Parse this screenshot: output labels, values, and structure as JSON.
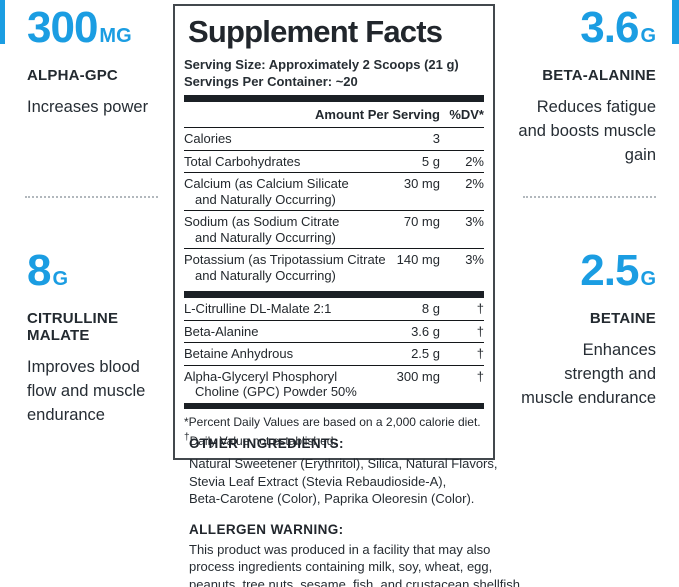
{
  "colors": {
    "accent": "#1b9de2",
    "dark": "#22282e"
  },
  "benefits": {
    "top_left": {
      "value": "300",
      "unit": "MG",
      "name": "ALPHA-GPC",
      "description_lines": [
        "Increases power"
      ]
    },
    "bottom_left": {
      "value": "8",
      "unit": "G",
      "name": "CITRULLINE MALATE",
      "description_lines": [
        "Improves blood",
        "flow and muscle",
        "endurance"
      ]
    },
    "top_right": {
      "value": "3.6",
      "unit": "G",
      "name": "BETA-ALANINE",
      "description_lines": [
        "Reduces fatigue",
        "and boosts muscle",
        "gain"
      ]
    },
    "bottom_right": {
      "value": "2.5",
      "unit": "G",
      "name": "BETAINE",
      "description_lines": [
        "Enhances",
        "strength and",
        "muscle endurance"
      ]
    }
  },
  "panel": {
    "title": "Supplement Facts",
    "serving_size": "Serving Size: Approximately 2 Scoops (21 g)",
    "servings_per_container": "Servings Per Container: ~20",
    "column_headers": {
      "amount": "Amount Per Serving",
      "dv": "%DV*"
    },
    "rows_main": [
      {
        "name": "Calories",
        "name2": "",
        "amount": "3",
        "dv": ""
      },
      {
        "name": "Total Carbohydrates",
        "name2": "",
        "amount": "5 g",
        "dv": "2%"
      },
      {
        "name": "Calcium (as Calcium Silicate",
        "name2": "and Naturally Occurring)",
        "amount": "30 mg",
        "dv": "2%"
      },
      {
        "name": "Sodium (as Sodium Citrate",
        "name2": "and Naturally Occurring)",
        "amount": "70 mg",
        "dv": "3%"
      },
      {
        "name": "Potassium (as Tripotassium Citrate",
        "name2": "and Naturally Occurring)",
        "amount": "140 mg",
        "dv": "3%"
      }
    ],
    "rows_secondary": [
      {
        "name": "L-Citrulline DL-Malate 2:1",
        "name2": "",
        "amount": "8 g",
        "dv": "†"
      },
      {
        "name": "Beta-Alanine",
        "name2": "",
        "amount": "3.6 g",
        "dv": "†"
      },
      {
        "name": "Betaine Anhydrous",
        "name2": "",
        "amount": "2.5 g",
        "dv": "†"
      },
      {
        "name": "Alpha-Glyceryl Phosphoryl",
        "name2": "Choline (GPC) Powder 50%",
        "amount": "300 mg",
        "dv": "†"
      }
    ],
    "footnote_dv": "*Percent Daily Values are based on a 2,000 calorie diet.",
    "footnote_dagger_marker": "†",
    "footnote_dagger_text": "Daily Value not established."
  },
  "other_ingredients": {
    "heading": "OTHER INGREDIENTS:",
    "lines": [
      "Natural Sweetener (Erythritol), Silica, Natural Flavors,",
      "Stevia Leaf Extract (Stevia Rebaudioside-A),",
      "Beta-Carotene (Color), Paprika Oleoresin (Color)."
    ]
  },
  "allergen_warning": {
    "heading": "ALLERGEN WARNING:",
    "lines": [
      "This product was produced in a facility that may also",
      "process ingredients containing milk, soy, wheat, egg,",
      "peanuts, tree nuts, sesame, fish, and crustacean shellfish."
    ]
  }
}
